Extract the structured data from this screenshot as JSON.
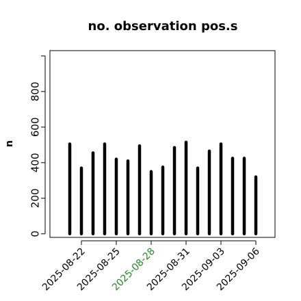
{
  "chart_data": {
    "type": "bar",
    "style": "vertical-lines",
    "title": "no. observation pos.s",
    "ylabel": "n",
    "xlabel": "",
    "ylim": [
      -20,
      1030
    ],
    "yticks": [
      0,
      200,
      400,
      600,
      800
    ],
    "x_start": "2025-08-21",
    "x_end": "2025-09-06",
    "xticks": [
      {
        "date": "2025-08-22",
        "label": "2025-08-22",
        "color": "#000000"
      },
      {
        "date": "2025-08-25",
        "label": "2025-08-25",
        "color": "#000000"
      },
      {
        "date": "2025-08-28",
        "label": "2025-08-28",
        "color": "#228B22"
      },
      {
        "date": "2025-08-31",
        "label": "2025-08-31",
        "color": "#000000"
      },
      {
        "date": "2025-09-03",
        "label": "2025-09-03",
        "color": "#000000"
      },
      {
        "date": "2025-09-06",
        "label": "2025-09-06",
        "color": "#000000"
      }
    ],
    "x": [
      "2025-08-21",
      "2025-08-22",
      "2025-08-23",
      "2025-08-24",
      "2025-08-25",
      "2025-08-26",
      "2025-08-27",
      "2025-08-28",
      "2025-08-29",
      "2025-08-30",
      "2025-08-31",
      "2025-09-01",
      "2025-09-02",
      "2025-09-03",
      "2025-09-04",
      "2025-09-05",
      "2025-09-06"
    ],
    "values": [
      505,
      370,
      455,
      505,
      420,
      410,
      495,
      350,
      375,
      485,
      515,
      370,
      465,
      505,
      425,
      425,
      320
    ],
    "bar_color": "#000000",
    "grid": false
  }
}
